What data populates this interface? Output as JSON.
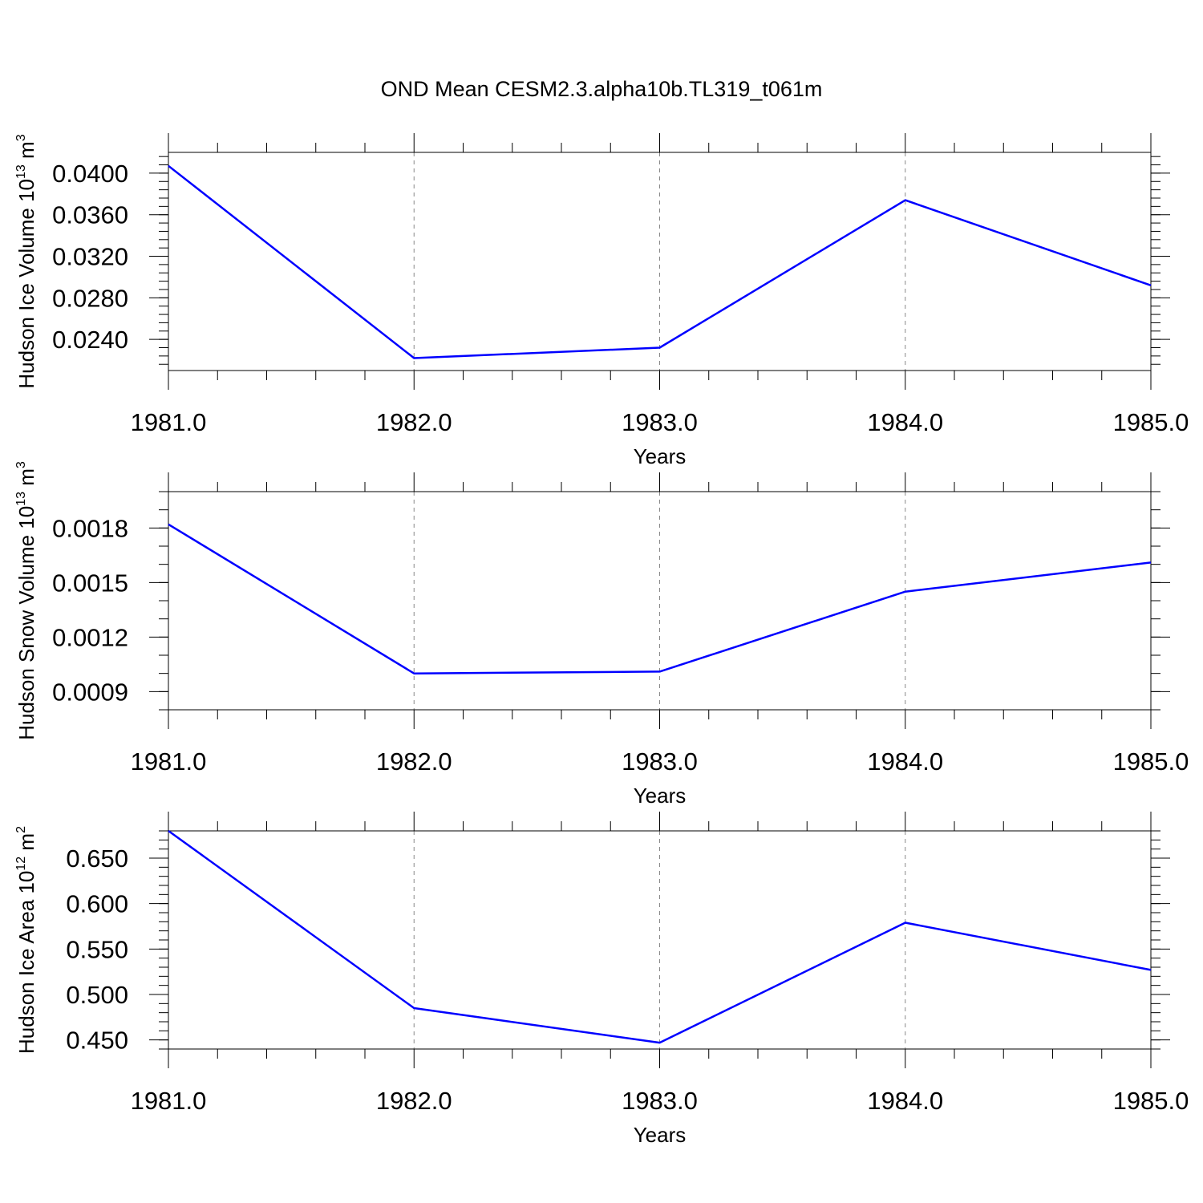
{
  "title": "OND Mean CESM2.3.alpha10b.TL319_t061m",
  "colors": {
    "line": "#0000ff",
    "axis": "#000000",
    "grid": "#888888"
  },
  "chart_data": [
    {
      "type": "line",
      "ylabel": "Hudson Ice Volume 10",
      "ylabel_sup": "13",
      "ylabel_unit": " m",
      "ylabel_unit_sup": "3",
      "xlabel": "Years",
      "x": [
        1981,
        1982,
        1983,
        1984,
        1985
      ],
      "x_tick_labels": [
        "1981.0",
        "1982.0",
        "1983.0",
        "1984.0",
        "1985.0"
      ],
      "series": [
        {
          "values": [
            0.0407,
            0.0222,
            0.0232,
            0.0374,
            0.0292
          ]
        }
      ],
      "xlim": [
        1981,
        1985
      ],
      "ylim": [
        0.021,
        0.042
      ],
      "y_ticks": [
        0.024,
        0.028,
        0.032,
        0.036,
        0.04
      ],
      "y_tick_labels": [
        "0.0240",
        "0.0280",
        "0.0320",
        "0.0360",
        "0.0400"
      ],
      "y_minor_step": 0.0008,
      "grid": "vertical dashed at major x ticks"
    },
    {
      "type": "line",
      "ylabel": "Hudson Snow Volume 10",
      "ylabel_sup": "13",
      "ylabel_unit": " m",
      "ylabel_unit_sup": "3",
      "xlabel": "Years",
      "x": [
        1981,
        1982,
        1983,
        1984,
        1985
      ],
      "x_tick_labels": [
        "1981.0",
        "1982.0",
        "1983.0",
        "1984.0",
        "1985.0"
      ],
      "series": [
        {
          "values": [
            0.00182,
            0.001,
            0.00101,
            0.00145,
            0.00161
          ]
        }
      ],
      "xlim": [
        1981,
        1985
      ],
      "ylim": [
        0.0008,
        0.002
      ],
      "y_ticks": [
        0.0009,
        0.0012,
        0.0015,
        0.0018
      ],
      "y_tick_labels": [
        "0.0009",
        "0.0012",
        "0.0015",
        "0.0018"
      ],
      "y_minor_step": 0.0001,
      "grid": "vertical dashed at major x ticks"
    },
    {
      "type": "line",
      "ylabel": "Hudson Ice Area 10",
      "ylabel_sup": "12",
      "ylabel_unit": " m",
      "ylabel_unit_sup": "2",
      "xlabel": "Years",
      "x": [
        1981,
        1982,
        1983,
        1984,
        1985
      ],
      "x_tick_labels": [
        "1981.0",
        "1982.0",
        "1983.0",
        "1984.0",
        "1985.0"
      ],
      "series": [
        {
          "values": [
            0.68,
            0.485,
            0.447,
            0.579,
            0.527
          ]
        }
      ],
      "xlim": [
        1981,
        1985
      ],
      "ylim": [
        0.44,
        0.68
      ],
      "y_ticks": [
        0.45,
        0.5,
        0.55,
        0.6,
        0.65
      ],
      "y_tick_labels": [
        "0.450",
        "0.500",
        "0.550",
        "0.600",
        "0.650"
      ],
      "y_minor_step": 0.01,
      "grid": "vertical dashed at major x ticks"
    }
  ]
}
